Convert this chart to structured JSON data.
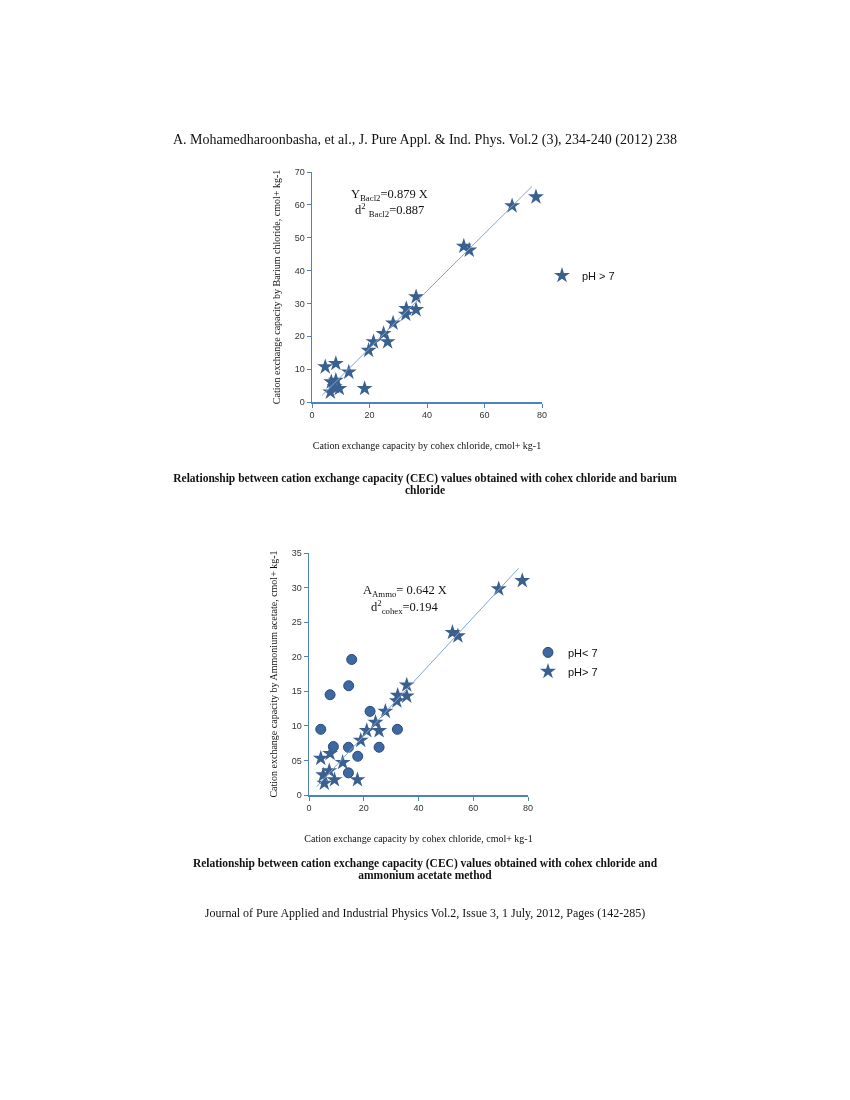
{
  "chart_data": [
    {
      "type": "scatter",
      "xlabel": "Cation exchange capacity by cohex chloride, cmol+ kg-1",
      "ylabel": "Cation exchange capacity by Barium chloride, cmol+ kg-1",
      "xlim": [
        0,
        80
      ],
      "xticks": [
        0,
        20,
        40,
        60,
        80
      ],
      "ylim": [
        0,
        70
      ],
      "yticks": [
        0,
        10,
        20,
        30,
        40,
        50,
        60,
        70
      ],
      "grid": false,
      "legend": "right",
      "annotations": [
        "A. Mohamedharoonbasha, et al., J. Pure Appl. & Ind. Phys. Vol.2 (3), 234-240 (2012)   238",
        "Y$_{Bacl2}$=0.879 X",
        "d$^{2}$ $_{Bacl2}$=0.887",
        "Relationship between cation exchange capacity (CEC) values obtained with cohex chloride and barium chloride"
      ],
      "series": [
        {
          "name": "pH > 7",
          "color": "#3a6090",
          "marker": "star",
          "x": [
            4.6,
            8.3,
            12.8,
            6.7,
            8.3,
            6.4,
            9.5,
            7.9,
            18.3,
            19.7,
            21.4,
            24.9,
            26.3,
            28.2,
            32.6,
            32.8,
            36.2,
            36.2,
            52.8,
            54.7,
            69.6,
            77.9
          ],
          "values": [
            10.7,
            11.7,
            9.1,
            6.1,
            6.6,
            3.0,
            4.1,
            4.6,
            4.1,
            15.7,
            18.3,
            20.8,
            18.3,
            24.0,
            26.7,
            28.4,
            28.1,
            32.0,
            47.4,
            46.2,
            59.7,
            62.4
          ]
        },
        {
          "type": "line",
          "color": "#7ea6d8",
          "marker": "none",
          "x": [
            3.5,
            76.5
          ],
          "values": [
            2.0,
            65.6
          ]
        }
      ]
    },
    {
      "type": "scatter",
      "xlabel": "Cation exchange capacity by cohex chloride, cmol+ kg-1",
      "ylabel": "Cation exchange capacity by Ammonium acetate, cmol+ kg-1",
      "xlim": [
        0,
        80
      ],
      "xticks": [
        0,
        20,
        40,
        60,
        80
      ],
      "ylim": [
        0,
        35
      ],
      "yticks": [
        0,
        {
          "value": 5,
          "label": "05"
        },
        10,
        15,
        20,
        25,
        30,
        35
      ],
      "grid": false,
      "legend": "right",
      "annotations": [
        "A$_{Ammo}$= 0.642 X",
        "d$^{2}$$_{cohex}$=0.194",
        "Relationship between cation exchange capacity (CEC) values obtained with cohex chloride and ammonium acetate method",
        "Journal of Pure Applied and Industrial Physics Vol.2, Issue 3, 1 July, 2012, Pages (142-285)"
      ],
      "series": [
        {
          "name": "pH< 7",
          "color": "#3d69a3",
          "marker": "circle",
          "x": [
            4.3,
            7.7,
            14.5,
            15.6,
            8.9,
            14.4,
            17.8,
            14.4,
            22.3,
            25.6,
            32.3
          ],
          "values": [
            9.5,
            14.5,
            15.8,
            19.6,
            7.0,
            6.9,
            5.6,
            3.2,
            12.1,
            6.9,
            9.5
          ]
        },
        {
          "name": "pH> 7",
          "color": "#3a6090",
          "marker": "star",
          "x": [
            4.3,
            5.6,
            5.2,
            7.4,
            7.7,
            9.3,
            12.3,
            17.7,
            18.9,
            21.1,
            24.3,
            25.6,
            27.9,
            32.1,
            32.4,
            35.7,
            35.7,
            52.4,
            54.4,
            69.3,
            77.9
          ],
          "values": [
            5.3,
            1.7,
            2.9,
            3.5,
            6.0,
            2.2,
            4.7,
            2.2,
            7.9,
            9.3,
            10.5,
            9.3,
            12.1,
            13.6,
            14.4,
            14.3,
            15.9,
            23.5,
            23.0,
            29.8,
            31.0
          ]
        },
        {
          "type": "line",
          "color": "#7ea6d8",
          "marker": "none",
          "x": [
            2.8,
            76.6
          ],
          "values": [
            1.2,
            32.8
          ]
        }
      ]
    }
  ]
}
